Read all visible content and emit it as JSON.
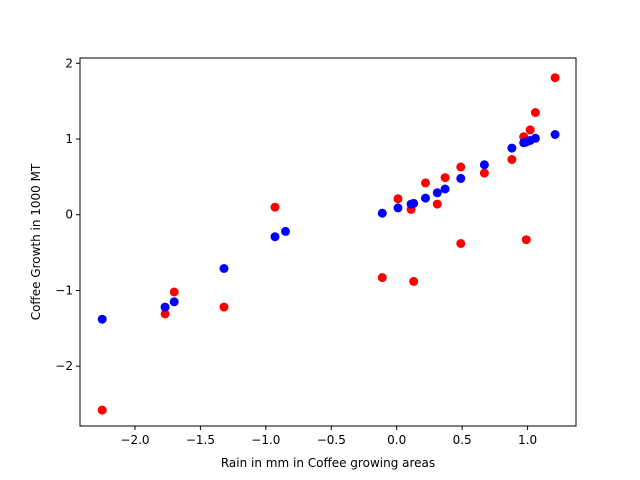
{
  "chart_data": {
    "type": "scatter",
    "xlabel": "Rain in mm in Coffee growing areas",
    "ylabel": "Coffee Growth in 1000 MT",
    "xlim": [
      -2.42,
      1.37
    ],
    "ylim": [
      -2.79,
      2.07
    ],
    "xticks": [
      -2.0,
      -1.5,
      -1.0,
      -0.5,
      0.0,
      0.5,
      1.0
    ],
    "xtick_labels": [
      "−2.0",
      "−1.5",
      "−1.0",
      "−0.5",
      "0.0",
      "0.5",
      "1.0"
    ],
    "yticks": [
      -2,
      -1,
      0,
      1,
      2
    ],
    "ytick_labels": [
      "−2",
      "−1",
      "0",
      "1",
      "2"
    ],
    "grid": false,
    "series": [
      {
        "color": "#ff0000",
        "points": [
          [
            -2.25,
            -2.58
          ],
          [
            -1.77,
            -1.31
          ],
          [
            -1.7,
            -1.02
          ],
          [
            -1.32,
            -1.22
          ],
          [
            -0.93,
            0.1
          ],
          [
            -0.11,
            -0.83
          ],
          [
            0.01,
            0.21
          ],
          [
            0.11,
            0.07
          ],
          [
            0.13,
            -0.88
          ],
          [
            0.22,
            0.42
          ],
          [
            0.31,
            0.14
          ],
          [
            0.37,
            0.49
          ],
          [
            0.49,
            0.63
          ],
          [
            0.49,
            -0.38
          ],
          [
            0.67,
            0.55
          ],
          [
            0.88,
            0.73
          ],
          [
            0.97,
            1.03
          ],
          [
            0.99,
            -0.33
          ],
          [
            1.02,
            1.12
          ],
          [
            1.06,
            1.35
          ],
          [
            1.21,
            1.81
          ]
        ]
      },
      {
        "color": "#0000ff",
        "points": [
          [
            -2.25,
            -1.38
          ],
          [
            -1.77,
            -1.22
          ],
          [
            -1.7,
            -1.15
          ],
          [
            -1.32,
            -0.71
          ],
          [
            -0.93,
            -0.29
          ],
          [
            -0.85,
            -0.22
          ],
          [
            -0.11,
            0.02
          ],
          [
            0.01,
            0.09
          ],
          [
            0.11,
            0.14
          ],
          [
            0.13,
            0.15
          ],
          [
            0.22,
            0.22
          ],
          [
            0.31,
            0.29
          ],
          [
            0.37,
            0.34
          ],
          [
            0.49,
            0.48
          ],
          [
            0.67,
            0.66
          ],
          [
            0.88,
            0.88
          ],
          [
            0.97,
            0.95
          ],
          [
            0.99,
            0.96
          ],
          [
            1.02,
            0.98
          ],
          [
            1.06,
            1.01
          ],
          [
            1.21,
            1.06
          ]
        ]
      }
    ]
  }
}
